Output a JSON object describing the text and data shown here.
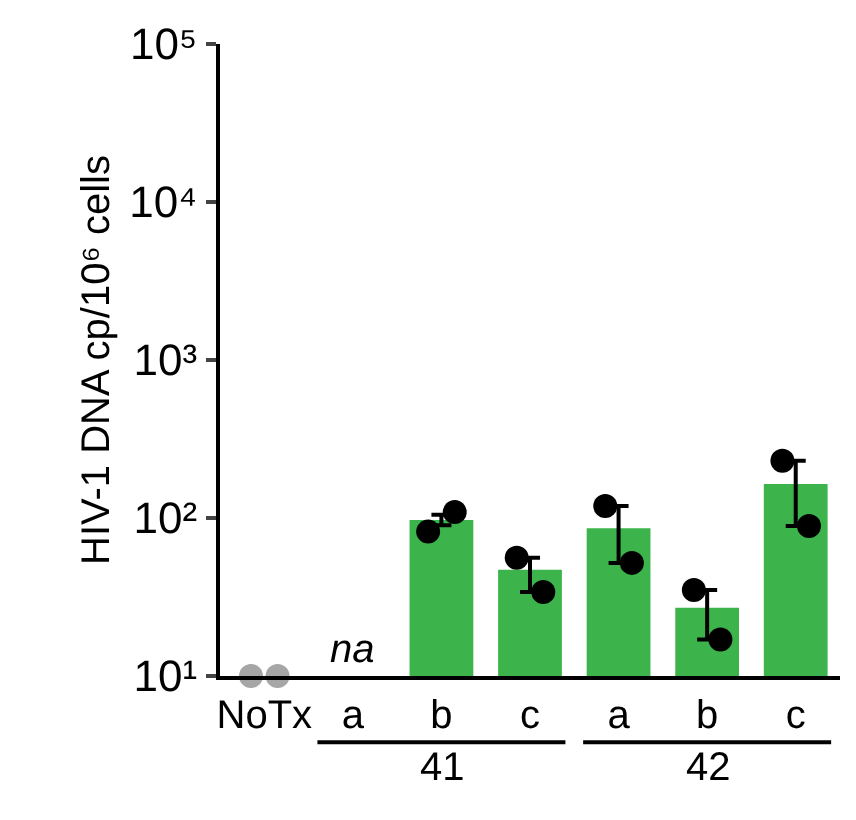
{
  "chart_data": {
    "type": "bar",
    "ylabel": "HIV-1 DNA cp/10⁶ cells",
    "categories": [
      "NoTx",
      "a",
      "b",
      "c",
      "a",
      "b",
      "c"
    ],
    "log": true,
    "ylim": [
      10,
      100000
    ],
    "yticks": [
      {
        "value": 10,
        "label": "10¹"
      },
      {
        "value": 100,
        "label": "10²"
      },
      {
        "value": 1000,
        "label": "10³"
      },
      {
        "value": 10000,
        "label": "10⁴"
      },
      {
        "value": 100000,
        "label": "10⁵"
      }
    ],
    "series": [
      {
        "color": "#3cb44b",
        "values": [
          null,
          null,
          97,
          47,
          86,
          27,
          164
        ],
        "errors": [
          null,
          null,
          [
            90,
            105
          ],
          [
            34,
            56
          ],
          [
            52,
            119
          ],
          [
            17,
            35
          ],
          [
            89,
            230
          ]
        ]
      },
      {
        "type": "scatter",
        "marker": "circle",
        "colors": [
          "#a6a6a6",
          "#000000",
          "#000000",
          "#000000",
          "#000000",
          "#000000",
          "#000000"
        ],
        "values": [
          10,
          null,
          82,
          56,
          119,
          35,
          230
        ]
      },
      {
        "type": "scatter",
        "marker": "circle",
        "colors": [
          "#a6a6a6",
          "#000000",
          "#000000",
          "#000000",
          "#000000",
          "#000000",
          "#000000"
        ],
        "values": [
          10,
          null,
          109,
          34,
          52,
          17,
          89
        ]
      }
    ],
    "annotations": [
      "na",
      "41",
      "42"
    ]
  }
}
